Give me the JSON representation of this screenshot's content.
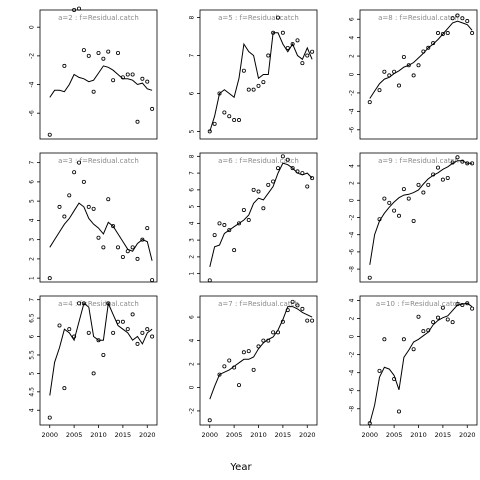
{
  "figure": {
    "xlabel": "Year",
    "title": "",
    "background": "#ffffff",
    "line_color": "#000000",
    "strip_text_color": "#8a8a8a"
  },
  "chart_data": [
    {
      "type": "line",
      "panel": "a=2",
      "title": "a=2 : f=Residual.catch",
      "xlim": [
        1998,
        2022
      ],
      "ylim": [
        -7.8,
        1.2
      ],
      "yticks": [
        0,
        -2,
        -4,
        -6
      ],
      "xticks": [
        2000,
        2005,
        2010,
        2015,
        2020
      ],
      "points": {
        "x": [
          2000,
          2003,
          2005,
          2006,
          2007,
          2008,
          2009,
          2010,
          2011,
          2012,
          2013,
          2014,
          2015,
          2016,
          2017,
          2018,
          2019,
          2020,
          2021
        ],
        "y": [
          -7.5,
          -2.7,
          1.2,
          1.3,
          -1.6,
          -2.0,
          -4.5,
          -1.8,
          -2.2,
          -1.7,
          -3.7,
          -1.8,
          -3.5,
          -3.3,
          -3.3,
          -6.6,
          -3.6,
          -3.8,
          -5.7
        ]
      },
      "fit": {
        "x": [
          2000,
          2001,
          2002,
          2003,
          2004,
          2005,
          2006,
          2007,
          2008,
          2009,
          2010,
          2011,
          2012,
          2013,
          2014,
          2015,
          2016,
          2017,
          2018,
          2019,
          2020,
          2021
        ],
        "y": [
          -4.9,
          -4.4,
          -4.4,
          -4.5,
          -4.0,
          -3.3,
          -3.5,
          -3.6,
          -3.8,
          -3.7,
          -3.2,
          -2.7,
          -2.8,
          -3.0,
          -3.3,
          -3.6,
          -3.6,
          -3.7,
          -4.0,
          -3.9,
          -4.3,
          -4.4
        ]
      }
    },
    {
      "type": "line",
      "panel": "a=5",
      "title": "a=5 : f=Residual.catch",
      "xlim": [
        1998,
        2022
      ],
      "ylim": [
        4.8,
        8.2
      ],
      "yticks": [
        5,
        6,
        7,
        8
      ],
      "xticks": [
        2000,
        2005,
        2010,
        2015,
        2020
      ],
      "points": {
        "x": [
          2000,
          2001,
          2002,
          2003,
          2004,
          2005,
          2006,
          2007,
          2008,
          2009,
          2010,
          2011,
          2012,
          2013,
          2014,
          2015,
          2016,
          2017,
          2018,
          2019,
          2020,
          2021
        ],
        "y": [
          5.0,
          5.2,
          6.0,
          5.5,
          5.4,
          5.3,
          5.3,
          6.6,
          6.1,
          6.1,
          6.2,
          6.3,
          7.0,
          7.6,
          8.0,
          7.6,
          7.2,
          7.3,
          7.4,
          6.8,
          7.0,
          7.1
        ]
      },
      "fit": {
        "x": [
          2000,
          2001,
          2002,
          2003,
          2004,
          2005,
          2006,
          2007,
          2008,
          2009,
          2010,
          2011,
          2012,
          2013,
          2014,
          2015,
          2016,
          2017,
          2018,
          2019,
          2020,
          2021
        ],
        "y": [
          5.0,
          5.4,
          6.0,
          6.1,
          6.0,
          5.9,
          6.4,
          7.3,
          7.1,
          7.0,
          6.4,
          6.5,
          6.5,
          7.6,
          7.6,
          7.3,
          7.1,
          7.3,
          7.0,
          6.9,
          7.2,
          6.9
        ]
      }
    },
    {
      "type": "line",
      "panel": "a=8",
      "title": "a=8 : f=Residual.catch",
      "xlim": [
        1998,
        2022
      ],
      "ylim": [
        -7.0,
        7.0
      ],
      "yticks": [
        6,
        4,
        2,
        0,
        -2,
        -4,
        -6
      ],
      "xticks": [
        2000,
        2005,
        2010,
        2015,
        2020
      ],
      "points": {
        "x": [
          2000,
          2002,
          2003,
          2004,
          2005,
          2006,
          2007,
          2008,
          2009,
          2010,
          2011,
          2012,
          2013,
          2014,
          2015,
          2016,
          2017,
          2018,
          2019,
          2020,
          2021
        ],
        "y": [
          -3.0,
          -1.7,
          0.3,
          -0.1,
          0.3,
          -1.2,
          1.9,
          1.0,
          -0.1,
          1.0,
          2.5,
          2.9,
          3.4,
          4.5,
          4.4,
          4.5,
          6.1,
          6.4,
          6.1,
          5.8,
          4.5
        ]
      },
      "fit": {
        "x": [
          2000,
          2001,
          2002,
          2003,
          2004,
          2005,
          2006,
          2007,
          2008,
          2009,
          2010,
          2011,
          2012,
          2013,
          2014,
          2015,
          2016,
          2017,
          2018,
          2019,
          2020,
          2021
        ],
        "y": [
          -2.6,
          -1.8,
          -1.0,
          -0.5,
          -0.3,
          0.1,
          0.4,
          0.8,
          1.0,
          1.3,
          1.8,
          2.3,
          2.9,
          3.3,
          3.8,
          4.4,
          5.0,
          5.6,
          5.8,
          5.6,
          5.4,
          4.8
        ]
      }
    },
    {
      "type": "line",
      "panel": "a=3",
      "title": "a=3 : f=Residual.catch",
      "xlim": [
        1998,
        2022
      ],
      "ylim": [
        0.8,
        7.5
      ],
      "yticks": [
        7,
        6,
        5,
        4,
        3,
        2,
        1
      ],
      "xticks": [
        2000,
        2005,
        2010,
        2015,
        2020
      ],
      "points": {
        "x": [
          2000,
          2002,
          2003,
          2004,
          2005,
          2006,
          2007,
          2008,
          2009,
          2010,
          2011,
          2012,
          2013,
          2014,
          2015,
          2016,
          2017,
          2018,
          2019,
          2020,
          2021
        ],
        "y": [
          1.0,
          4.7,
          4.2,
          5.3,
          6.5,
          7.0,
          6.0,
          4.7,
          4.6,
          3.1,
          2.6,
          5.1,
          3.7,
          2.6,
          2.1,
          2.4,
          2.6,
          2.0,
          3.0,
          3.6,
          0.9
        ]
      },
      "fit": {
        "x": [
          2000,
          2001,
          2002,
          2003,
          2004,
          2005,
          2006,
          2007,
          2008,
          2009,
          2010,
          2011,
          2012,
          2013,
          2014,
          2015,
          2016,
          2017,
          2018,
          2019,
          2020,
          2021
        ],
        "y": [
          2.6,
          3.0,
          3.4,
          3.8,
          4.1,
          4.5,
          4.9,
          4.7,
          4.1,
          3.8,
          3.6,
          3.3,
          3.9,
          3.7,
          3.3,
          2.9,
          2.5,
          2.4,
          2.8,
          3.0,
          2.9,
          1.9
        ]
      }
    },
    {
      "type": "line",
      "panel": "a=6",
      "title": "a=6 : f=Residual.catch",
      "xlim": [
        1998,
        2022
      ],
      "ylim": [
        0.5,
        8.2
      ],
      "yticks": [
        8,
        7,
        6,
        5,
        4,
        3,
        2,
        1
      ],
      "xticks": [
        2000,
        2005,
        2010,
        2015,
        2020
      ],
      "points": {
        "x": [
          2000,
          2001,
          2002,
          2003,
          2004,
          2005,
          2006,
          2007,
          2008,
          2009,
          2010,
          2011,
          2012,
          2013,
          2014,
          2015,
          2016,
          2017,
          2018,
          2019,
          2020,
          2021
        ],
        "y": [
          0.6,
          3.3,
          4.0,
          3.9,
          3.6,
          2.4,
          4.0,
          4.8,
          4.2,
          6.0,
          5.9,
          4.9,
          6.3,
          6.5,
          7.3,
          8.0,
          7.8,
          7.3,
          7.1,
          7.0,
          6.2,
          6.7
        ]
      },
      "fit": {
        "x": [
          2000,
          2001,
          2002,
          2003,
          2004,
          2005,
          2006,
          2007,
          2008,
          2009,
          2010,
          2011,
          2012,
          2013,
          2014,
          2015,
          2016,
          2017,
          2018,
          2019,
          2020,
          2021
        ],
        "y": [
          1.4,
          2.6,
          2.7,
          3.4,
          3.6,
          3.8,
          4.0,
          4.2,
          4.5,
          5.2,
          5.5,
          5.4,
          5.8,
          6.2,
          7.0,
          7.6,
          7.5,
          7.3,
          7.0,
          6.9,
          7.0,
          6.7
        ]
      }
    },
    {
      "type": "line",
      "panel": "a=9",
      "title": "a=9 : f=Residual.catch",
      "xlim": [
        1998,
        2022
      ],
      "ylim": [
        -9.5,
        5.5
      ],
      "yticks": [
        4,
        2,
        0,
        -2,
        -4,
        -6,
        -8
      ],
      "xticks": [
        2000,
        2005,
        2010,
        2015,
        2020
      ],
      "points": {
        "x": [
          2000,
          2002,
          2003,
          2004,
          2005,
          2006,
          2007,
          2008,
          2009,
          2010,
          2011,
          2012,
          2013,
          2014,
          2015,
          2016,
          2017,
          2018,
          2019,
          2020,
          2021
        ],
        "y": [
          -9.0,
          -2.2,
          0.2,
          -0.3,
          -1.2,
          -1.8,
          1.3,
          0.2,
          -2.4,
          1.8,
          0.9,
          1.8,
          3.0,
          3.8,
          2.4,
          2.6,
          4.4,
          5.0,
          4.5,
          4.3,
          4.3
        ]
      },
      "fit": {
        "x": [
          2000,
          2001,
          2002,
          2003,
          2004,
          2005,
          2006,
          2007,
          2008,
          2009,
          2010,
          2011,
          2012,
          2013,
          2014,
          2015,
          2016,
          2017,
          2018,
          2019,
          2020,
          2021
        ],
        "y": [
          -7.5,
          -4.0,
          -2.4,
          -1.5,
          -0.8,
          -0.2,
          0.3,
          0.6,
          0.7,
          0.9,
          1.2,
          1.9,
          2.5,
          2.9,
          3.2,
          3.6,
          3.9,
          4.3,
          4.6,
          4.6,
          4.3,
          4.3
        ]
      }
    },
    {
      "type": "line",
      "panel": "a=4",
      "title": "a=4 : f=Residual.catch",
      "xlim": [
        1998,
        2022
      ],
      "ylim": [
        3.6,
        7.1
      ],
      "yticks": [
        7.0,
        6.5,
        6.0,
        5.5,
        5.0,
        4.5,
        4.0
      ],
      "xticks": [
        2000,
        2005,
        2010,
        2015,
        2020
      ],
      "points": {
        "x": [
          2000,
          2002,
          2003,
          2004,
          2005,
          2006,
          2007,
          2008,
          2009,
          2010,
          2011,
          2012,
          2013,
          2014,
          2015,
          2016,
          2017,
          2018,
          2019,
          2020,
          2021
        ],
        "y": [
          3.8,
          6.3,
          4.6,
          6.2,
          6.0,
          6.9,
          6.9,
          6.1,
          5.0,
          5.9,
          5.5,
          6.9,
          6.1,
          6.4,
          6.4,
          6.2,
          6.6,
          5.8,
          6.1,
          6.2,
          6.0
        ]
      },
      "fit": {
        "x": [
          2000,
          2001,
          2002,
          2003,
          2004,
          2005,
          2006,
          2007,
          2008,
          2009,
          2010,
          2011,
          2012,
          2013,
          2014,
          2015,
          2016,
          2017,
          2018,
          2019,
          2020,
          2021
        ],
        "y": [
          4.4,
          5.3,
          5.7,
          6.2,
          6.1,
          5.9,
          6.4,
          6.9,
          6.8,
          6.0,
          5.9,
          5.9,
          6.9,
          6.6,
          6.3,
          6.2,
          6.1,
          5.9,
          6.0,
          5.8,
          6.1,
          6.2
        ]
      }
    },
    {
      "type": "line",
      "panel": "a=7",
      "title": "a=7 : f=Residual.catch",
      "xlim": [
        1998,
        2022
      ],
      "ylim": [
        -3.2,
        7.8
      ],
      "yticks": [
        6,
        4,
        2,
        0,
        -2
      ],
      "xticks": [
        2000,
        2005,
        2010,
        2015,
        2020
      ],
      "points": {
        "x": [
          2000,
          2002,
          2003,
          2004,
          2005,
          2006,
          2007,
          2008,
          2009,
          2010,
          2011,
          2012,
          2013,
          2014,
          2015,
          2016,
          2017,
          2018,
          2019,
          2020,
          2021
        ],
        "y": [
          -2.8,
          1.1,
          1.8,
          2.3,
          1.7,
          0.2,
          3.0,
          3.1,
          1.5,
          3.5,
          4.0,
          4.0,
          4.7,
          4.7,
          5.6,
          6.6,
          7.3,
          7.0,
          6.7,
          5.7,
          5.7
        ]
      },
      "fit": {
        "x": [
          2000,
          2001,
          2002,
          2003,
          2004,
          2005,
          2006,
          2007,
          2008,
          2009,
          2010,
          2011,
          2012,
          2013,
          2014,
          2015,
          2016,
          2017,
          2018,
          2019,
          2020,
          2021
        ],
        "y": [
          -1.0,
          0.1,
          1.1,
          1.3,
          1.5,
          1.8,
          2.1,
          2.4,
          2.4,
          2.6,
          3.3,
          3.8,
          4.1,
          4.3,
          4.9,
          5.8,
          6.9,
          6.9,
          6.7,
          6.4,
          6.2,
          6.0
        ]
      }
    },
    {
      "type": "line",
      "panel": "a=10",
      "title": "a=10 : f=Residual.catch",
      "xlim": [
        1998,
        2022
      ],
      "ylim": [
        -9.8,
        4.5
      ],
      "yticks": [
        4,
        2,
        0,
        -2,
        -4,
        -6,
        -8
      ],
      "xticks": [
        2000,
        2005,
        2010,
        2015,
        2020
      ],
      "points": {
        "x": [
          2000,
          2002,
          2003,
          2005,
          2006,
          2007,
          2009,
          2010,
          2011,
          2012,
          2013,
          2014,
          2015,
          2016,
          2017,
          2018,
          2019,
          2020,
          2021
        ],
        "y": [
          -9.6,
          -3.8,
          -0.3,
          -4.7,
          -8.3,
          -0.3,
          -1.4,
          2.2,
          0.6,
          0.7,
          1.6,
          2.1,
          3.2,
          1.9,
          1.6,
          3.6,
          3.5,
          3.7,
          3.1
        ]
      },
      "fit": {
        "x": [
          2000,
          2001,
          2002,
          2003,
          2004,
          2005,
          2006,
          2007,
          2008,
          2009,
          2010,
          2011,
          2012,
          2013,
          2014,
          2015,
          2016,
          2017,
          2018,
          2019,
          2020,
          2021
        ],
        "y": [
          -9.6,
          -7.6,
          -4.5,
          -3.4,
          -3.6,
          -4.3,
          -5.9,
          -2.3,
          -1.5,
          -0.6,
          -0.3,
          0.1,
          0.5,
          1.3,
          1.8,
          2.1,
          2.3,
          2.9,
          3.5,
          3.6,
          3.7,
          3.3
        ]
      }
    }
  ]
}
